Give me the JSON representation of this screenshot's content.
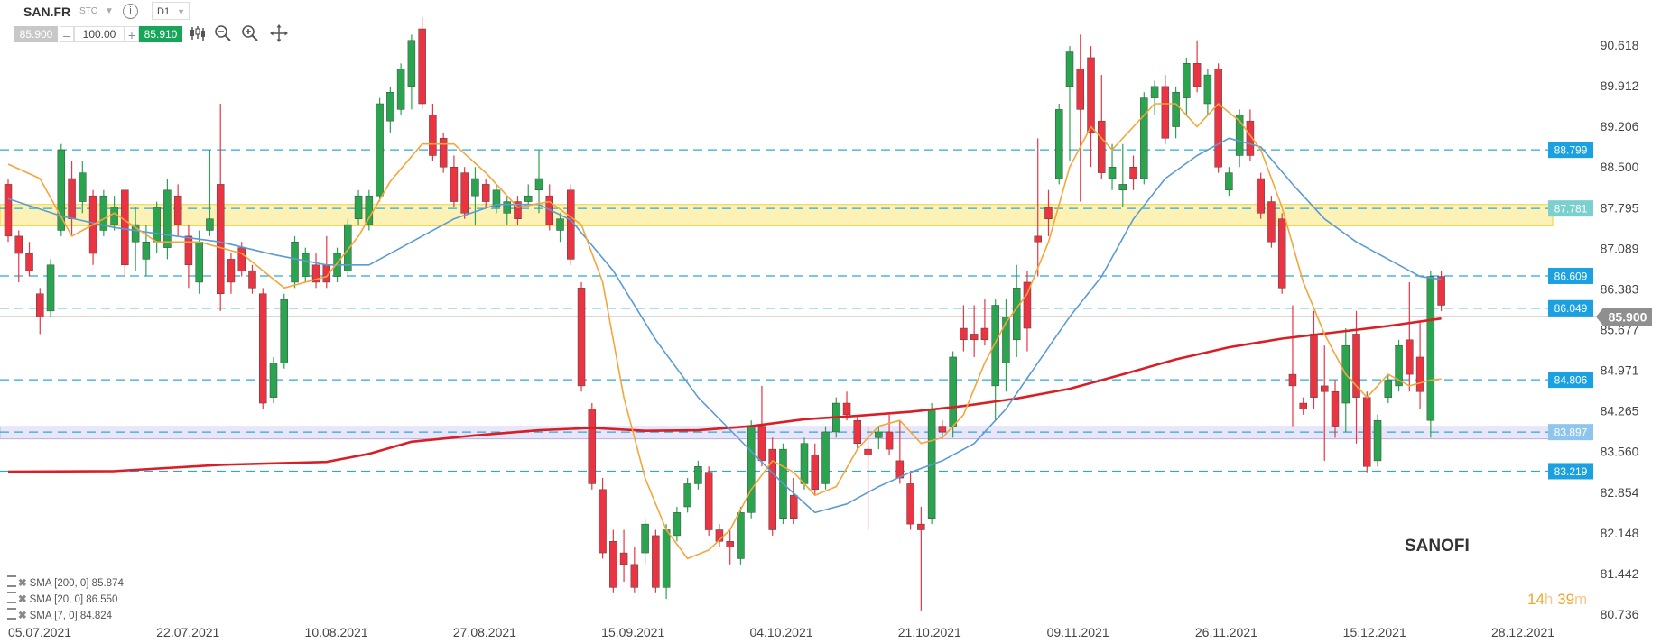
{
  "toolbar": {
    "symbol": "SAN.FR",
    "market": "STC",
    "info": "i",
    "timeframe": "D1",
    "bid": "85.900",
    "minus": "–",
    "quantity": "100.00",
    "plus": "+",
    "ask": "85.910"
  },
  "instrument_name": "SANOFI",
  "timer": {
    "hours": "14",
    "h_unit": "h",
    "minutes": "39",
    "m_unit": "m"
  },
  "legend": [
    {
      "label": "SMA [200, 0] 85.874"
    },
    {
      "label": "SMA [20, 0] 86.550"
    },
    {
      "label": "SMA [7, 0] 84.824"
    }
  ],
  "colors": {
    "bull": "#2aa44f",
    "bear": "#ea3441",
    "sma200": "#d91f26",
    "sma20": "#5b9bd5",
    "sma7": "#f4a63a",
    "hline": "#29a9e0",
    "zone_yellow": "#fdf2b5",
    "zone_purple": "#e8e6f8",
    "last_price": "#8f8f8f"
  },
  "chart_data": {
    "type": "candlestick",
    "title": "SANOFI",
    "ylim": [
      80.45,
      91.2
    ],
    "yticks": [
      "90.618",
      "89.912",
      "89.206",
      "88.500",
      "87.795",
      "87.089",
      "86.383",
      "85.677",
      "84.971",
      "84.265",
      "83.560",
      "82.854",
      "82.148",
      "81.442",
      "80.736"
    ],
    "xticks": [
      "05.07.2021",
      "22.07.2021",
      "10.08.2021",
      "27.08.2021",
      "15.09.2021",
      "04.10.2021",
      "21.10.2021",
      "09.11.2021",
      "26.11.2021",
      "15.12.2021",
      "28.12.2021"
    ],
    "last_price": {
      "label": "85.900",
      "value": 85.9
    },
    "horizontal_levels": [
      {
        "label": "88.799",
        "value": 88.799
      },
      {
        "label": "87.781",
        "value": 87.781
      },
      {
        "label": "86.609",
        "value": 86.609
      },
      {
        "label": "86.049",
        "value": 86.049
      },
      {
        "label": "84.806",
        "value": 84.806
      },
      {
        "label": "83.897",
        "value": 83.897
      },
      {
        "label": "83.219",
        "value": 83.219
      }
    ],
    "zones": [
      {
        "from": 87.48,
        "to": 87.85,
        "color": "yellow"
      },
      {
        "from": 83.78,
        "to": 83.99,
        "color": "purple"
      }
    ],
    "candles": [
      [
        88.2,
        88.3,
        87.2,
        87.3
      ],
      [
        87.3,
        87.4,
        86.5,
        87.0
      ],
      [
        87.0,
        87.2,
        86.6,
        86.7
      ],
      [
        86.3,
        86.4,
        85.6,
        85.9
      ],
      [
        86.0,
        86.9,
        85.9,
        86.8
      ],
      [
        87.4,
        88.9,
        87.3,
        88.8
      ],
      [
        88.3,
        88.6,
        87.3,
        87.6
      ],
      [
        87.9,
        88.6,
        87.7,
        88.4
      ],
      [
        88.0,
        88.1,
        86.8,
        87.0
      ],
      [
        87.4,
        88.1,
        87.3,
        88.0
      ],
      [
        87.5,
        88.0,
        87.4,
        87.8
      ],
      [
        88.1,
        88.1,
        86.6,
        86.8
      ],
      [
        87.2,
        87.8,
        86.7,
        87.5
      ],
      [
        86.9,
        87.5,
        86.6,
        87.2
      ],
      [
        87.2,
        87.9,
        87.0,
        87.8
      ],
      [
        87.1,
        88.3,
        86.9,
        88.1
      ],
      [
        88.0,
        88.2,
        87.3,
        87.5
      ],
      [
        87.3,
        87.5,
        86.4,
        86.8
      ],
      [
        86.5,
        87.4,
        86.3,
        87.2
      ],
      [
        87.4,
        88.8,
        87.3,
        87.6
      ],
      [
        88.2,
        89.6,
        86.0,
        86.3
      ],
      [
        86.9,
        87.0,
        86.3,
        86.5
      ],
      [
        87.1,
        87.2,
        86.6,
        86.7
      ],
      [
        86.7,
        86.8,
        86.3,
        86.4
      ],
      [
        86.3,
        86.4,
        84.3,
        84.4
      ],
      [
        84.5,
        85.2,
        84.4,
        85.1
      ],
      [
        85.1,
        86.3,
        85.0,
        86.2
      ],
      [
        86.5,
        87.3,
        86.4,
        87.2
      ],
      [
        86.6,
        87.1,
        86.5,
        87.0
      ],
      [
        86.8,
        87.0,
        86.4,
        86.5
      ],
      [
        86.8,
        87.3,
        86.4,
        86.5
      ],
      [
        86.6,
        87.1,
        86.5,
        87.0
      ],
      [
        86.7,
        87.6,
        86.6,
        87.5
      ],
      [
        87.6,
        88.1,
        87.5,
        88.0
      ],
      [
        87.5,
        88.1,
        87.4,
        88.0
      ],
      [
        88.0,
        89.7,
        87.9,
        89.6
      ],
      [
        89.3,
        89.9,
        89.1,
        89.8
      ],
      [
        89.5,
        90.3,
        89.4,
        90.2
      ],
      [
        89.9,
        90.8,
        89.5,
        90.7
      ],
      [
        90.9,
        91.1,
        89.5,
        89.6
      ],
      [
        89.4,
        89.6,
        88.6,
        88.7
      ],
      [
        89.0,
        89.1,
        88.4,
        88.5
      ],
      [
        88.5,
        88.7,
        87.8,
        87.9
      ],
      [
        88.4,
        88.5,
        87.6,
        87.7
      ],
      [
        88.0,
        88.5,
        87.5,
        88.3
      ],
      [
        88.2,
        88.3,
        87.8,
        87.9
      ],
      [
        87.8,
        88.2,
        87.7,
        88.1
      ],
      [
        87.7,
        88.0,
        87.5,
        87.9
      ],
      [
        87.9,
        88.0,
        87.5,
        87.6
      ],
      [
        87.9,
        88.2,
        87.8,
        88.0
      ],
      [
        88.1,
        88.8,
        87.7,
        88.3
      ],
      [
        88.0,
        88.2,
        87.4,
        87.5
      ],
      [
        87.4,
        87.7,
        87.2,
        87.6
      ],
      [
        88.1,
        88.2,
        86.8,
        86.9
      ],
      [
        86.4,
        86.5,
        84.6,
        84.7
      ],
      [
        84.3,
        84.4,
        82.9,
        83.0
      ],
      [
        82.9,
        83.1,
        81.7,
        81.8
      ],
      [
        82.0,
        82.2,
        81.1,
        81.2
      ],
      [
        81.8,
        82.2,
        81.3,
        81.6
      ],
      [
        81.6,
        81.9,
        81.1,
        81.2
      ],
      [
        81.8,
        82.4,
        81.6,
        82.3
      ],
      [
        82.1,
        82.2,
        81.1,
        81.2
      ],
      [
        81.2,
        82.3,
        81.0,
        82.2
      ],
      [
        82.1,
        82.6,
        82.0,
        82.5
      ],
      [
        82.6,
        83.1,
        82.5,
        83.0
      ],
      [
        83.0,
        83.4,
        82.9,
        83.3
      ],
      [
        83.2,
        83.3,
        82.1,
        82.2
      ],
      [
        82.2,
        82.3,
        81.9,
        82.0
      ],
      [
        82.0,
        82.2,
        81.6,
        81.9
      ],
      [
        81.7,
        82.6,
        81.6,
        82.5
      ],
      [
        82.5,
        84.1,
        82.4,
        84.0
      ],
      [
        84.0,
        84.7,
        83.3,
        83.4
      ],
      [
        83.6,
        83.8,
        82.1,
        82.2
      ],
      [
        82.4,
        83.7,
        82.3,
        83.6
      ],
      [
        82.8,
        83.1,
        82.3,
        82.4
      ],
      [
        83.0,
        83.8,
        82.9,
        83.7
      ],
      [
        83.5,
        83.7,
        82.8,
        82.9
      ],
      [
        83.0,
        84.0,
        82.9,
        83.9
      ],
      [
        83.9,
        84.5,
        83.8,
        84.4
      ],
      [
        84.4,
        84.6,
        84.1,
        84.2
      ],
      [
        84.1,
        84.2,
        83.6,
        83.7
      ],
      [
        83.6,
        84.0,
        82.2,
        83.5
      ],
      [
        83.8,
        84.0,
        83.6,
        83.9
      ],
      [
        83.9,
        84.2,
        83.5,
        83.6
      ],
      [
        83.4,
        84.1,
        83.0,
        83.1
      ],
      [
        83.0,
        83.2,
        82.2,
        82.3
      ],
      [
        82.3,
        82.6,
        80.8,
        82.2
      ],
      [
        82.4,
        84.4,
        82.3,
        84.3
      ],
      [
        84.0,
        84.1,
        83.8,
        83.9
      ],
      [
        84.0,
        85.3,
        83.8,
        85.2
      ],
      [
        85.7,
        86.1,
        85.3,
        85.5
      ],
      [
        85.6,
        86.1,
        85.2,
        85.5
      ],
      [
        85.7,
        86.2,
        85.4,
        85.5
      ],
      [
        84.7,
        86.2,
        84.1,
        86.1
      ],
      [
        85.1,
        86.2,
        84.6,
        85.9
      ],
      [
        85.5,
        86.8,
        85.2,
        86.4
      ],
      [
        86.5,
        86.7,
        85.3,
        85.7
      ],
      [
        87.3,
        89.0,
        86.6,
        87.2
      ],
      [
        87.8,
        88.1,
        87.3,
        87.6
      ],
      [
        88.3,
        89.6,
        88.2,
        89.5
      ],
      [
        89.9,
        90.6,
        88.6,
        90.5
      ],
      [
        90.2,
        90.8,
        87.9,
        89.5
      ],
      [
        90.4,
        90.6,
        88.5,
        89.1
      ],
      [
        89.3,
        90.1,
        88.3,
        88.4
      ],
      [
        88.3,
        88.9,
        88.1,
        88.5
      ],
      [
        88.1,
        88.9,
        87.8,
        88.2
      ],
      [
        88.5,
        88.7,
        88.1,
        88.3
      ],
      [
        88.3,
        89.8,
        88.2,
        89.7
      ],
      [
        89.7,
        90.0,
        89.4,
        89.9
      ],
      [
        89.9,
        90.1,
        88.9,
        89.0
      ],
      [
        89.2,
        89.9,
        89.0,
        89.8
      ],
      [
        89.7,
        90.4,
        89.4,
        90.3
      ],
      [
        90.3,
        90.7,
        89.8,
        89.9
      ],
      [
        89.6,
        90.2,
        89.4,
        90.1
      ],
      [
        90.2,
        90.3,
        88.4,
        88.5
      ],
      [
        88.1,
        88.5,
        88.0,
        88.4
      ],
      [
        88.7,
        89.5,
        88.5,
        89.4
      ],
      [
        89.3,
        89.5,
        88.6,
        88.7
      ],
      [
        88.3,
        88.4,
        87.6,
        87.7
      ],
      [
        87.9,
        88.0,
        87.1,
        87.2
      ],
      [
        87.6,
        87.7,
        86.3,
        86.4
      ],
      [
        84.9,
        86.1,
        84.0,
        84.7
      ],
      [
        84.4,
        84.5,
        84.2,
        84.3
      ],
      [
        85.6,
        86.0,
        84.3,
        84.5
      ],
      [
        84.7,
        85.4,
        83.4,
        84.6
      ],
      [
        84.6,
        84.8,
        83.8,
        84.0
      ],
      [
        84.4,
        85.7,
        83.9,
        85.4
      ],
      [
        85.6,
        86.0,
        83.7,
        84.5
      ],
      [
        84.5,
        84.6,
        83.2,
        83.3
      ],
      [
        83.4,
        84.2,
        83.3,
        84.1
      ],
      [
        84.5,
        84.9,
        84.4,
        84.8
      ],
      [
        84.7,
        85.5,
        84.6,
        85.4
      ],
      [
        85.5,
        86.5,
        84.6,
        84.9
      ],
      [
        85.2,
        85.8,
        84.3,
        84.6
      ],
      [
        84.1,
        86.7,
        83.8,
        86.6
      ],
      [
        86.6,
        86.7,
        86.0,
        86.1
      ]
    ],
    "series": [
      {
        "name": "SMA [200, 0] 85.874",
        "values": [
          [
            0,
            83.21
          ],
          [
            10,
            83.22
          ],
          [
            20,
            83.33
          ],
          [
            30,
            83.38
          ],
          [
            34,
            83.52
          ],
          [
            38,
            83.73
          ],
          [
            44,
            83.84
          ],
          [
            50,
            83.93
          ],
          [
            55,
            83.97
          ],
          [
            60,
            83.92
          ],
          [
            65,
            83.93
          ],
          [
            70,
            84.0
          ],
          [
            75,
            84.12
          ],
          [
            80,
            84.18
          ],
          [
            85,
            84.25
          ],
          [
            90,
            84.35
          ],
          [
            95,
            84.48
          ],
          [
            100,
            84.65
          ],
          [
            105,
            84.9
          ],
          [
            110,
            85.16
          ],
          [
            115,
            85.37
          ],
          [
            120,
            85.52
          ],
          [
            125,
            85.63
          ],
          [
            130,
            85.74
          ],
          [
            135,
            85.87
          ]
        ]
      },
      {
        "name": "SMA [20, 0] 86.550",
        "values": [
          [
            0,
            87.95
          ],
          [
            5,
            87.65
          ],
          [
            10,
            87.45
          ],
          [
            15,
            87.32
          ],
          [
            20,
            87.2
          ],
          [
            25,
            86.98
          ],
          [
            30,
            86.8
          ],
          [
            34,
            86.8
          ],
          [
            38,
            87.2
          ],
          [
            42,
            87.6
          ],
          [
            46,
            87.85
          ],
          [
            50,
            87.85
          ],
          [
            53,
            87.58
          ],
          [
            57,
            86.7
          ],
          [
            61,
            85.5
          ],
          [
            65,
            84.5
          ],
          [
            69,
            83.75
          ],
          [
            73,
            83.0
          ],
          [
            76,
            82.5
          ],
          [
            79,
            82.65
          ],
          [
            82,
            82.95
          ],
          [
            85,
            83.2
          ],
          [
            88,
            83.4
          ],
          [
            91,
            83.7
          ],
          [
            94,
            84.3
          ],
          [
            97,
            85.1
          ],
          [
            100,
            85.9
          ],
          [
            103,
            86.6
          ],
          [
            106,
            87.6
          ],
          [
            109,
            88.3
          ],
          [
            112,
            88.7
          ],
          [
            115,
            89.0
          ],
          [
            118,
            88.85
          ],
          [
            121,
            88.2
          ],
          [
            124,
            87.6
          ],
          [
            127,
            87.2
          ],
          [
            130,
            86.9
          ],
          [
            133,
            86.6
          ],
          [
            135,
            86.55
          ]
        ]
      },
      {
        "name": "SMA [7, 0] 84.824",
        "values": [
          [
            0,
            88.55
          ],
          [
            3,
            88.3
          ],
          [
            6,
            87.3
          ],
          [
            10,
            87.7
          ],
          [
            14,
            87.2
          ],
          [
            18,
            87.2
          ],
          [
            22,
            87.0
          ],
          [
            26,
            86.4
          ],
          [
            30,
            86.6
          ],
          [
            33,
            87.3
          ],
          [
            36,
            88.25
          ],
          [
            39,
            88.9
          ],
          [
            42,
            88.9
          ],
          [
            45,
            88.4
          ],
          [
            48,
            87.8
          ],
          [
            51,
            87.9
          ],
          [
            54,
            87.5
          ],
          [
            56,
            86.5
          ],
          [
            58,
            84.5
          ],
          [
            60,
            83.1
          ],
          [
            62,
            82.2
          ],
          [
            64,
            81.7
          ],
          [
            66,
            81.85
          ],
          [
            68,
            82.2
          ],
          [
            70,
            82.9
          ],
          [
            72,
            83.4
          ],
          [
            74,
            83.2
          ],
          [
            76,
            82.8
          ],
          [
            78,
            82.95
          ],
          [
            80,
            83.6
          ],
          [
            82,
            84.0
          ],
          [
            84,
            84.1
          ],
          [
            86,
            83.7
          ],
          [
            88,
            83.8
          ],
          [
            90,
            84.2
          ],
          [
            92,
            85.1
          ],
          [
            94,
            85.8
          ],
          [
            96,
            86.3
          ],
          [
            98,
            87.2
          ],
          [
            100,
            88.5
          ],
          [
            102,
            89.2
          ],
          [
            104,
            88.8
          ],
          [
            106,
            89.2
          ],
          [
            108,
            89.6
          ],
          [
            110,
            89.6
          ],
          [
            112,
            89.2
          ],
          [
            114,
            89.6
          ],
          [
            116,
            89.3
          ],
          [
            118,
            88.8
          ],
          [
            120,
            87.8
          ],
          [
            122,
            86.5
          ],
          [
            124,
            85.6
          ],
          [
            126,
            84.9
          ],
          [
            128,
            84.5
          ],
          [
            130,
            84.9
          ],
          [
            132,
            84.7
          ],
          [
            134,
            84.8
          ],
          [
            135,
            84.82
          ]
        ]
      }
    ]
  }
}
